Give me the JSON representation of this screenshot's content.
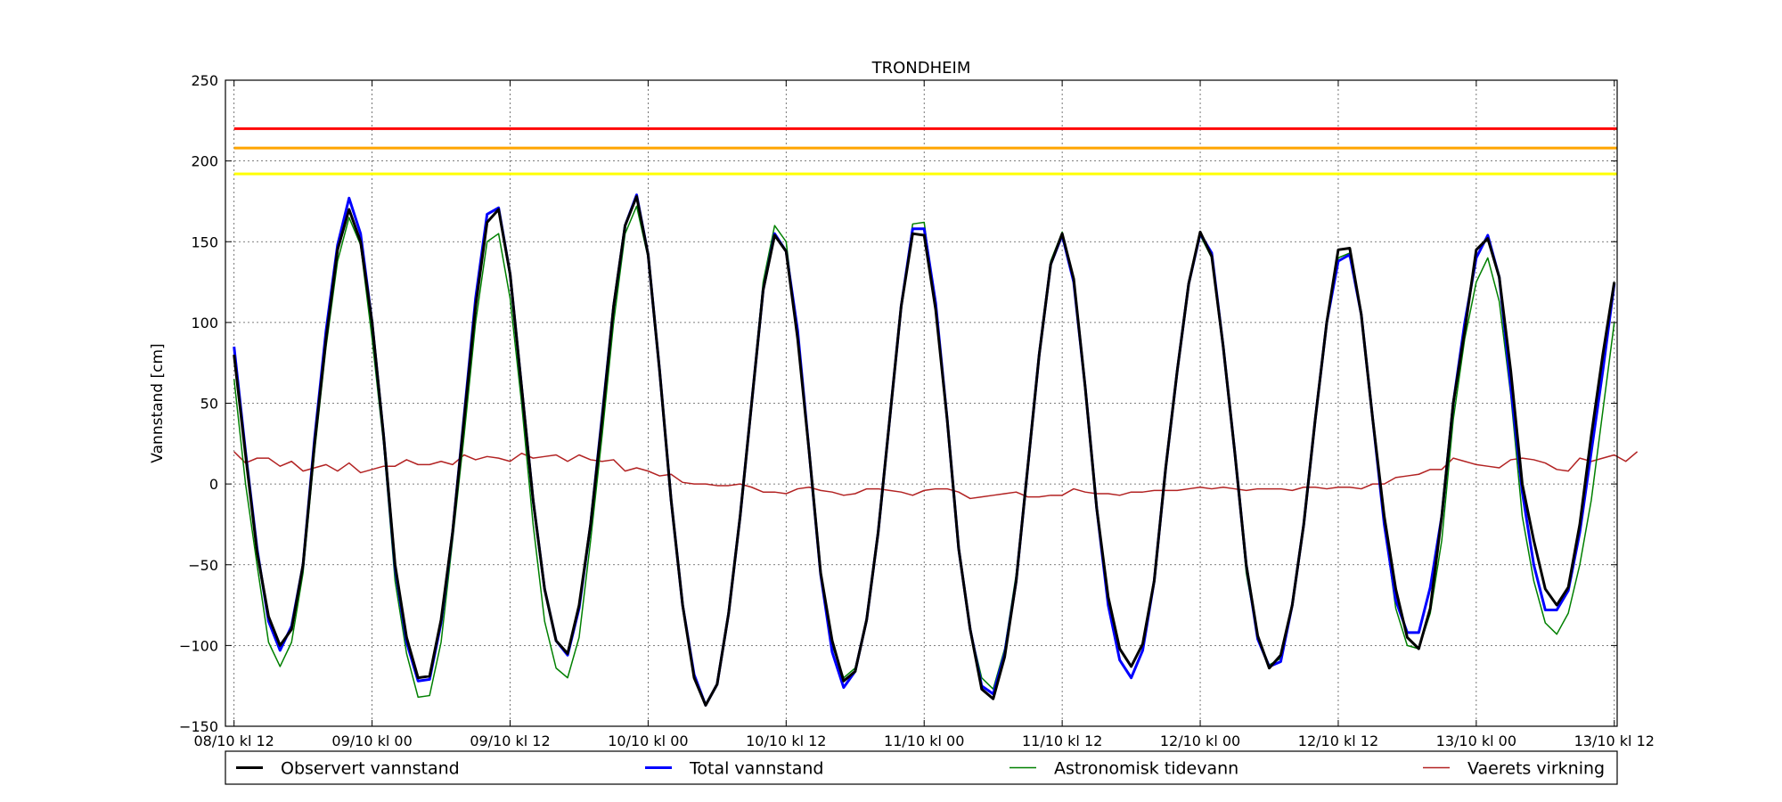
{
  "chart_data": {
    "type": "line",
    "title": "TRONDHEIM",
    "xlabel": "",
    "ylabel": "Vannstand [cm]",
    "ylim": [
      -150,
      250
    ],
    "yticks": [
      -150,
      -100,
      -50,
      0,
      50,
      100,
      150,
      200,
      250
    ],
    "ytick_labels": [
      "−150",
      "−100",
      "−50",
      "0",
      "50",
      "100",
      "150",
      "200",
      "250"
    ],
    "xlim_hours": [
      -0.75,
      120.25
    ],
    "xticks": [
      {
        "hour": 0,
        "label": "08/10 kl 12"
      },
      {
        "hour": 12,
        "label": "09/10 kl 00"
      },
      {
        "hour": 24,
        "label": "09/10 kl 12"
      },
      {
        "hour": 36,
        "label": "10/10 kl 00"
      },
      {
        "hour": 48,
        "label": "10/10 kl 12"
      },
      {
        "hour": 60,
        "label": "11/10 kl 00"
      },
      {
        "hour": 72,
        "label": "11/10 kl 12"
      },
      {
        "hour": 84,
        "label": "12/10 kl 00"
      },
      {
        "hour": 96,
        "label": "12/10 kl 12"
      },
      {
        "hour": 108,
        "label": "13/10 kl 00"
      },
      {
        "hour": 120,
        "label": "13/10 kl 12"
      }
    ],
    "grid": true,
    "legend_position": "bottom",
    "reference_lines": [
      {
        "y": 220,
        "color": "#ff0000"
      },
      {
        "y": 208,
        "color": "#ffa500"
      },
      {
        "y": 192,
        "color": "#ffff00"
      }
    ],
    "series": [
      {
        "name": "Observert vannstand",
        "color": "#000000",
        "width": 3,
        "values": [
          80,
          18,
          -42,
          -82,
          -100,
          -90,
          -50,
          25,
          90,
          145,
          170,
          150,
          100,
          30,
          -50,
          -95,
          -120,
          -119,
          -84,
          -30,
          40,
          110,
          162,
          170,
          130,
          60,
          -10,
          -65,
          -97,
          -105,
          -75,
          -25,
          40,
          110,
          160,
          178,
          142,
          70,
          -10,
          -75,
          -120,
          -137,
          -124,
          -80,
          -20,
          50,
          120,
          154,
          144,
          90,
          20,
          -55,
          -97,
          -122,
          -116,
          -84,
          -30,
          40,
          110,
          155,
          154,
          108,
          40,
          -40,
          -90,
          -127,
          -133,
          -107,
          -60,
          10,
          80,
          136,
          155,
          127,
          60,
          -15,
          -70,
          -102,
          -113,
          -99,
          -60,
          10,
          70,
          124,
          156,
          141,
          85,
          20,
          -50,
          -94,
          -114,
          -106,
          -75,
          -25,
          40,
          100,
          145,
          146,
          105,
          40,
          -20,
          -65,
          -95,
          -102,
          -77,
          -20,
          50,
          95,
          145,
          152,
          128,
          70,
          0,
          -35,
          -65,
          -75,
          -64,
          -25,
          30,
          80,
          125
        ]
      },
      {
        "name": "Total vannstand",
        "color": "#0000ff",
        "width": 3,
        "values": [
          85,
          20,
          -40,
          -85,
          -103,
          -88,
          -50,
          28,
          95,
          148,
          177,
          155,
          100,
          30,
          -52,
          -98,
          -122,
          -121,
          -86,
          -30,
          42,
          115,
          167,
          171,
          130,
          60,
          -10,
          -65,
          -97,
          -106,
          -77,
          -25,
          42,
          110,
          160,
          179,
          142,
          70,
          -10,
          -75,
          -118,
          -137,
          -124,
          -80,
          -20,
          50,
          120,
          155,
          144,
          95,
          20,
          -56,
          -104,
          -126,
          -116,
          -84,
          -30,
          40,
          110,
          158,
          158,
          112,
          40,
          -40,
          -90,
          -125,
          -130,
          -105,
          -60,
          10,
          80,
          136,
          154,
          125,
          60,
          -15,
          -75,
          -109,
          -120,
          -103,
          -60,
          10,
          70,
          124,
          155,
          143,
          85,
          20,
          -50,
          -96,
          -113,
          -110,
          -75,
          -25,
          40,
          100,
          138,
          142,
          105,
          40,
          -25,
          -72,
          -92,
          -92,
          -64,
          -20,
          50,
          100,
          140,
          154,
          128,
          60,
          -5,
          -50,
          -78,
          -78,
          -66,
          -30,
          20,
          70,
          124
        ]
      },
      {
        "name": "Astronomisk tidevann",
        "color": "#008000",
        "width": 1.5,
        "values": [
          65,
          0,
          -50,
          -98,
          -113,
          -98,
          -55,
          20,
          85,
          138,
          165,
          148,
          90,
          25,
          -60,
          -105,
          -132,
          -131,
          -98,
          -35,
          30,
          100,
          150,
          155,
          115,
          50,
          -25,
          -85,
          -114,
          -120,
          -95,
          -35,
          30,
          100,
          155,
          172,
          140,
          70,
          -10,
          -75,
          -118,
          -136,
          -124,
          -80,
          -20,
          52,
          125,
          160,
          150,
          90,
          20,
          -55,
          -100,
          -120,
          -114,
          -84,
          -30,
          40,
          110,
          161,
          162,
          110,
          40,
          -40,
          -90,
          -120,
          -127,
          -102,
          -56,
          10,
          80,
          138,
          156,
          125,
          60,
          -15,
          -70,
          -102,
          -113,
          -99,
          -60,
          10,
          70,
          124,
          154,
          140,
          85,
          20,
          -55,
          -95,
          -112,
          -108,
          -75,
          -25,
          40,
          100,
          140,
          143,
          105,
          40,
          -25,
          -77,
          -100,
          -102,
          -80,
          -35,
          40,
          90,
          125,
          140,
          113,
          55,
          -20,
          -60,
          -86,
          -93,
          -80,
          -50,
          -10,
          45,
          100
        ]
      },
      {
        "name": "Vaerets virkning",
        "color": "#b22222",
        "width": 1.5,
        "values": [
          20,
          13,
          16,
          16,
          11,
          14,
          8,
          10,
          12,
          8,
          13,
          7,
          9,
          11,
          11,
          15,
          12,
          12,
          14,
          12,
          18,
          15,
          17,
          16,
          14,
          19,
          16,
          17,
          18,
          14,
          18,
          15,
          14,
          15,
          8,
          10,
          8,
          5,
          6,
          1,
          0,
          0,
          -1,
          -1,
          0,
          -2,
          -5,
          -5,
          -6,
          -3,
          -2,
          -4,
          -5,
          -7,
          -6,
          -3,
          -3,
          -4,
          -5,
          -7,
          -4,
          -3,
          -3,
          -5,
          -9,
          -8,
          -7,
          -6,
          -5,
          -8,
          -8,
          -7,
          -7,
          -3,
          -5,
          -6,
          -6,
          -7,
          -5,
          -5,
          -4,
          -4,
          -4,
          -3,
          -2,
          -3,
          -2,
          -3,
          -4,
          -3,
          -3,
          -3,
          -4,
          -2,
          -2,
          -3,
          -2,
          -2,
          -3,
          0,
          0,
          4,
          5,
          6,
          9,
          9,
          16,
          14,
          12,
          11,
          10,
          15,
          16,
          15,
          13,
          9,
          8,
          16,
          14,
          16,
          18,
          14,
          20
        ]
      }
    ]
  }
}
